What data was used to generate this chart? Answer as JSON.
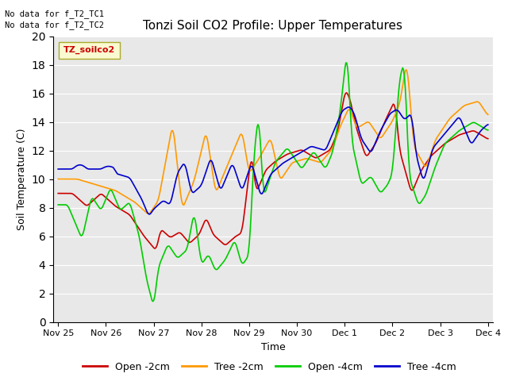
{
  "title": "Tonzi Soil CO2 Profile: Upper Temperatures",
  "ylabel": "Soil Temperature (C)",
  "xlabel": "Time",
  "top_left_text1": "No data for f_T2_TC1",
  "top_left_text2": "No data for f_T2_TC2",
  "legend_label_box": "TZ_soilco2",
  "ylim": [
    0,
    20
  ],
  "bg_color": "#ffffff",
  "axes_bg": "#e8e8e8",
  "line_colors": {
    "open_2cm": "#cc0000",
    "tree_2cm": "#ff9900",
    "open_4cm": "#00cc00",
    "tree_4cm": "#0000cc"
  },
  "legend_labels": [
    "Open -2cm",
    "Tree -2cm",
    "Open -4cm",
    "Tree -4cm"
  ],
  "tick_labels": [
    "Nov 25",
    "Nov 26",
    "Nov 27",
    "Nov 28",
    "Nov 29",
    "Nov 30",
    "Dec 1",
    "Dec 2",
    "Dec 3",
    "Dec 4"
  ],
  "num_points": 500
}
